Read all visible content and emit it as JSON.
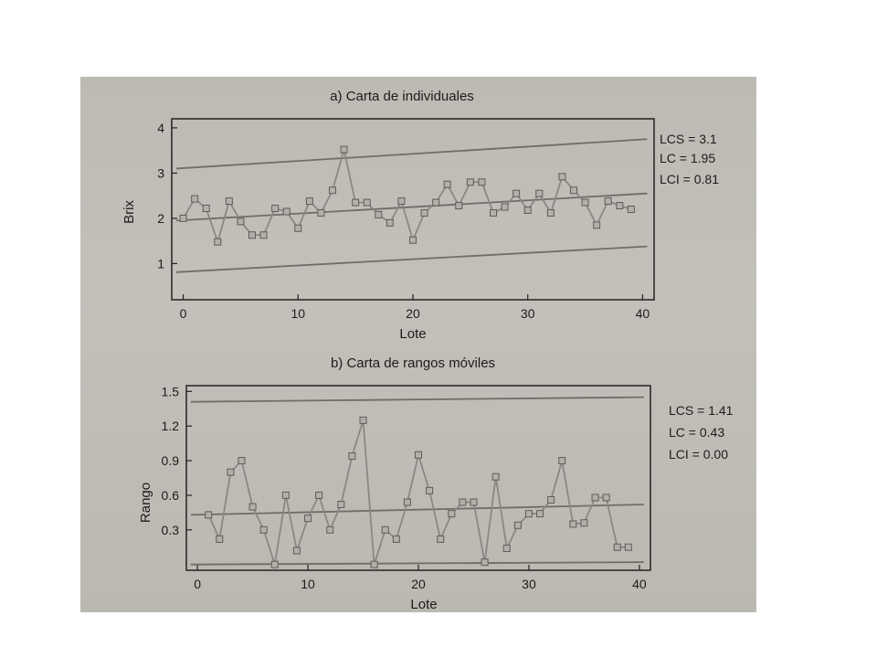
{
  "chart_data": [
    {
      "type": "line",
      "title": "a) Carta de individuales",
      "xlabel": "Lote",
      "ylabel": "Brix",
      "xlim": [
        -1,
        41
      ],
      "ylim": [
        0.2,
        4.2
      ],
      "xticks": [
        0,
        10,
        20,
        30,
        40
      ],
      "yticks": [
        1,
        2,
        3,
        4
      ],
      "limits": [
        {
          "label": "LCS = 3.1",
          "y0": 3.1,
          "y1": 3.75
        },
        {
          "label": "LC  = 1.95",
          "y0": 1.95,
          "y1": 2.55
        },
        {
          "label": "LCI = 0.81",
          "y0": 0.81,
          "y1": 1.38
        }
      ],
      "series": [
        {
          "x": [
            0,
            1,
            2,
            3,
            4,
            5,
            6,
            7,
            8,
            9,
            10,
            11,
            12,
            13,
            14,
            15,
            16,
            17,
            18,
            19,
            20,
            21,
            22,
            23,
            24,
            25,
            26,
            27,
            28,
            29,
            30,
            31,
            32,
            33,
            34,
            35,
            36,
            37,
            38,
            39
          ],
          "values": [
            2.0,
            2.43,
            2.22,
            1.48,
            2.38,
            1.93,
            1.63,
            1.63,
            2.22,
            2.15,
            1.78,
            2.38,
            2.12,
            2.62,
            3.52,
            2.35,
            2.35,
            2.08,
            1.9,
            2.38,
            1.52,
            2.12,
            2.35,
            2.75,
            2.28,
            2.8,
            2.8,
            2.12,
            2.25,
            2.55,
            2.18,
            2.55,
            2.12,
            2.92,
            2.62,
            2.35,
            1.85,
            2.38,
            2.28,
            2.2
          ]
        }
      ]
    },
    {
      "type": "line",
      "title": "b) Carta de rangos móviles",
      "xlabel": "Lote",
      "ylabel": "Rango",
      "xlim": [
        -1,
        41
      ],
      "ylim": [
        -0.05,
        1.55
      ],
      "xticks": [
        0,
        10,
        20,
        30,
        40
      ],
      "ytick_labels": [
        "0.3",
        "0.6",
        "0.9",
        "1.2",
        "1.5"
      ],
      "yticks": [
        0.3,
        0.6,
        0.9,
        1.2,
        1.5
      ],
      "limits": [
        {
          "label": "LCS = 1.41",
          "y0": 1.41,
          "y1": 1.45
        },
        {
          "label": "LC  = 0.43",
          "y0": 0.43,
          "y1": 0.52
        },
        {
          "label": "LCI = 0.00",
          "y0": 0.0,
          "y1": 0.02
        }
      ],
      "series": [
        {
          "x": [
            1,
            2,
            3,
            4,
            5,
            6,
            7,
            8,
            9,
            10,
            11,
            12,
            13,
            14,
            15,
            16,
            17,
            18,
            19,
            20,
            21,
            22,
            23,
            24,
            25,
            26,
            27,
            28,
            29,
            30,
            31,
            32,
            33,
            34,
            35,
            36,
            37,
            38,
            39
          ],
          "values": [
            0.43,
            0.22,
            0.8,
            0.9,
            0.5,
            0.3,
            0.0,
            0.6,
            0.12,
            0.4,
            0.6,
            0.3,
            0.52,
            0.94,
            1.25,
            0.0,
            0.3,
            0.22,
            0.54,
            0.95,
            0.64,
            0.22,
            0.44,
            0.54,
            0.54,
            0.02,
            0.76,
            0.14,
            0.34,
            0.44,
            0.44,
            0.56,
            0.9,
            0.35,
            0.36,
            0.58,
            0.58,
            0.15,
            0.15
          ]
        }
      ]
    }
  ]
}
